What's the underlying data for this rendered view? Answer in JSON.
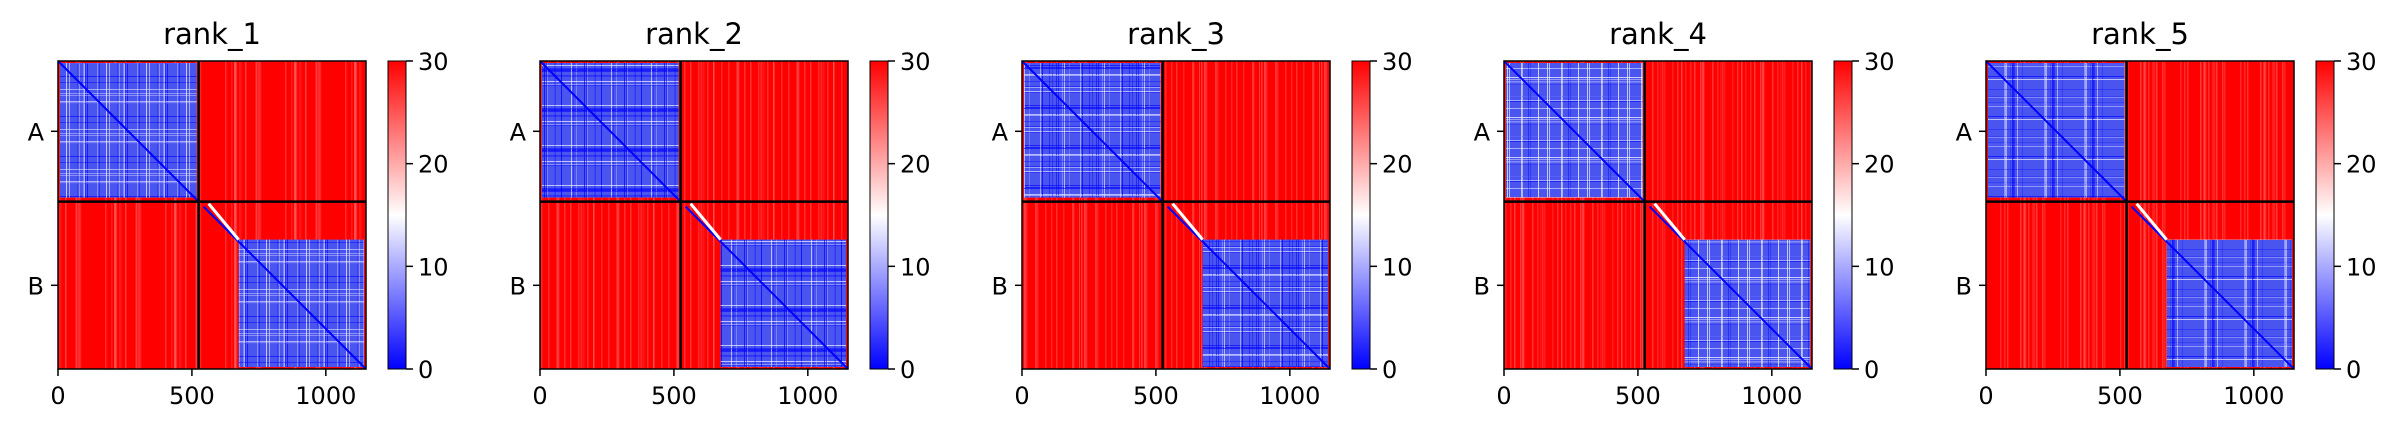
{
  "chart_data": [
    {
      "type": "heatmap",
      "title": "rank_1",
      "row_labels": [
        "A",
        "B"
      ],
      "xticks": [
        0,
        500,
        1000
      ],
      "xlim": [
        0,
        1150
      ],
      "chain_boundary": 525,
      "colorbar": {
        "range": [
          0,
          30
        ],
        "ticks": [
          0,
          10,
          20,
          30
        ],
        "colormap": "bwr",
        "colors": [
          "#0000ff",
          "#ffffff",
          "#ff0000"
        ]
      }
    },
    {
      "type": "heatmap",
      "title": "rank_2",
      "row_labels": [
        "A",
        "B"
      ],
      "xticks": [
        0,
        500,
        1000
      ],
      "xlim": [
        0,
        1150
      ],
      "chain_boundary": 525,
      "colorbar": {
        "range": [
          0,
          30
        ],
        "ticks": [
          0,
          10,
          20,
          30
        ],
        "colormap": "bwr",
        "colors": [
          "#0000ff",
          "#ffffff",
          "#ff0000"
        ]
      }
    },
    {
      "type": "heatmap",
      "title": "rank_3",
      "row_labels": [
        "A",
        "B"
      ],
      "xticks": [
        0,
        500,
        1000
      ],
      "xlim": [
        0,
        1150
      ],
      "chain_boundary": 525,
      "colorbar": {
        "range": [
          0,
          30
        ],
        "ticks": [
          0,
          10,
          20,
          30
        ],
        "colormap": "bwr",
        "colors": [
          "#0000ff",
          "#ffffff",
          "#ff0000"
        ]
      }
    },
    {
      "type": "heatmap",
      "title": "rank_4",
      "row_labels": [
        "A",
        "B"
      ],
      "xticks": [
        0,
        500,
        1000
      ],
      "xlim": [
        0,
        1150
      ],
      "chain_boundary": 525,
      "colorbar": {
        "range": [
          0,
          30
        ],
        "ticks": [
          0,
          10,
          20,
          30
        ],
        "colormap": "bwr",
        "colors": [
          "#0000ff",
          "#ffffff",
          "#ff0000"
        ]
      }
    },
    {
      "type": "heatmap",
      "title": "rank_5",
      "row_labels": [
        "A",
        "B"
      ],
      "xticks": [
        0,
        500,
        1000
      ],
      "xlim": [
        0,
        1150
      ],
      "chain_boundary": 525,
      "colorbar": {
        "range": [
          0,
          30
        ],
        "ticks": [
          0,
          10,
          20,
          30
        ],
        "colormap": "bwr",
        "colors": [
          "#0000ff",
          "#ffffff",
          "#ff0000"
        ]
      }
    }
  ]
}
